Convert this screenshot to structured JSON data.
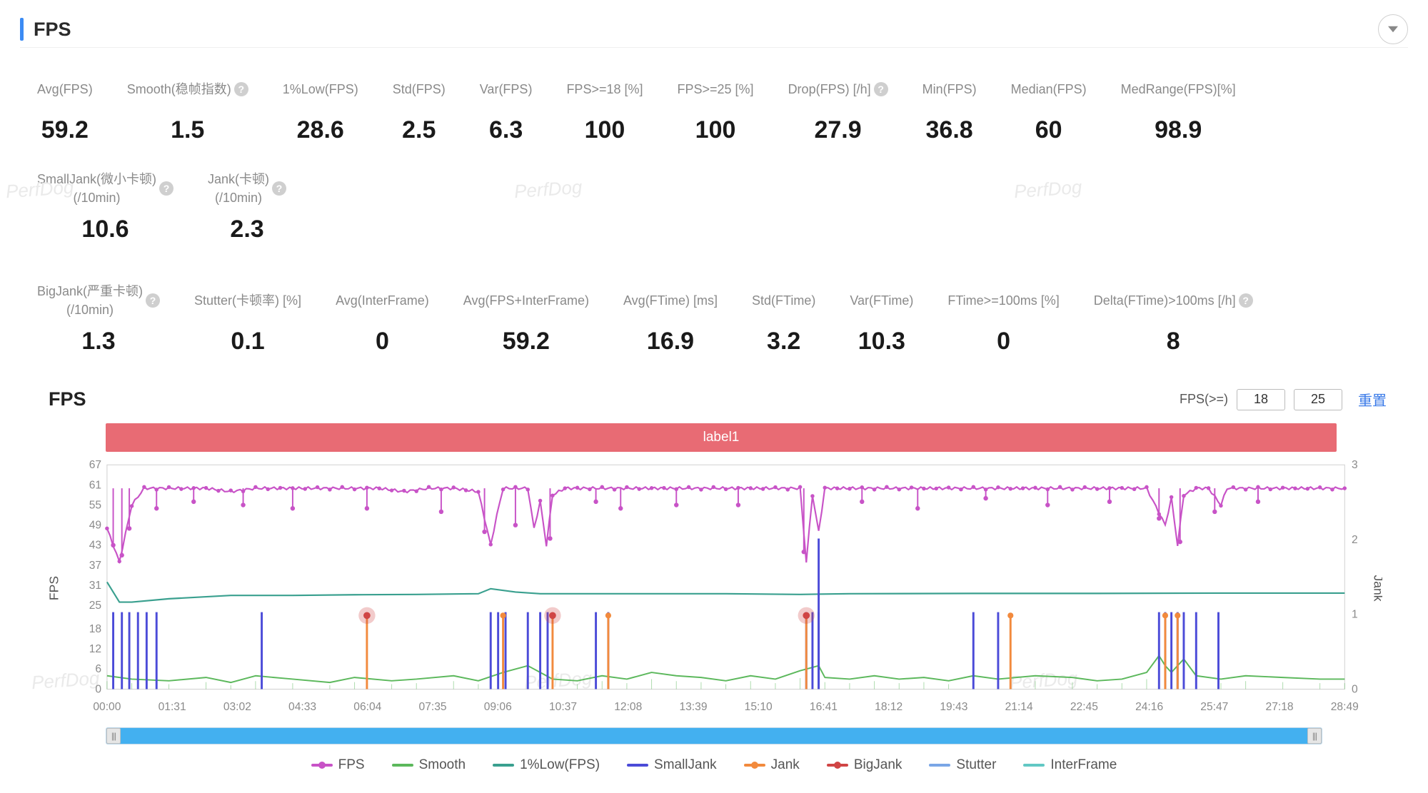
{
  "header": {
    "title": "FPS"
  },
  "watermark": "PerfDog",
  "metrics_row1": [
    {
      "label": "Avg(FPS)",
      "value": "59.2",
      "help": false
    },
    {
      "label": "Smooth(稳帧指数)",
      "value": "1.5",
      "help": true
    },
    {
      "label": "1%Low(FPS)",
      "value": "28.6",
      "help": false
    },
    {
      "label": "Std(FPS)",
      "value": "2.5",
      "help": false
    },
    {
      "label": "Var(FPS)",
      "value": "6.3",
      "help": false
    },
    {
      "label": "FPS>=18 [%]",
      "value": "100",
      "help": false
    },
    {
      "label": "FPS>=25 [%]",
      "value": "100",
      "help": false
    },
    {
      "label": "Drop(FPS) [/h]",
      "value": "27.9",
      "help": true
    },
    {
      "label": "Min(FPS)",
      "value": "36.8",
      "help": false
    },
    {
      "label": "Median(FPS)",
      "value": "60",
      "help": false
    },
    {
      "label": "MedRange(FPS)[%]",
      "value": "98.9",
      "help": false
    },
    {
      "label": "SmallJank(微小卡顿)\n(/10min)",
      "value": "10.6",
      "help": true
    },
    {
      "label": "Jank(卡顿)\n(/10min)",
      "value": "2.3",
      "help": true
    }
  ],
  "metrics_row2": [
    {
      "label": "BigJank(严重卡顿)\n(/10min)",
      "value": "1.3",
      "help": true
    },
    {
      "label": "Stutter(卡顿率) [%]",
      "value": "0.1",
      "help": false
    },
    {
      "label": "Avg(InterFrame)",
      "value": "0",
      "help": false
    },
    {
      "label": "Avg(FPS+InterFrame)",
      "value": "59.2",
      "help": false
    },
    {
      "label": "Avg(FTime) [ms]",
      "value": "16.9",
      "help": false
    },
    {
      "label": "Std(FTime)",
      "value": "3.2",
      "help": false
    },
    {
      "label": "Var(FTime)",
      "value": "10.3",
      "help": false
    },
    {
      "label": "FTime>=100ms [%]",
      "value": "0",
      "help": false
    },
    {
      "label": "Delta(FTime)>100ms [/h]",
      "value": "8",
      "help": true
    }
  ],
  "chart": {
    "title": "FPS",
    "filter_label": "FPS(>=)",
    "filter_a": "18",
    "filter_b": "25",
    "reset_label": "重置",
    "label_bar": "label1",
    "left_axis_label": "FPS",
    "right_axis_label": "Jank",
    "y_left_ticks": [
      0,
      6,
      12,
      18,
      25,
      31,
      37,
      43,
      49,
      55,
      61,
      67
    ],
    "y_left_range": [
      0,
      67
    ],
    "y_right_ticks": [
      0,
      1,
      2,
      3
    ],
    "y_right_range": [
      0,
      3
    ],
    "x_ticks": [
      "00:00",
      "01:31",
      "03:02",
      "04:33",
      "06:04",
      "07:35",
      "09:06",
      "10:37",
      "12:08",
      "13:39",
      "15:10",
      "16:41",
      "18:12",
      "19:43",
      "21:14",
      "22:45",
      "24:16",
      "25:47",
      "27:18",
      "28:49"
    ],
    "colors": {
      "fps": "#c853c7",
      "smooth": "#5cb85c",
      "low1": "#3aa08f",
      "smalljank": "#4b4bd8",
      "jank": "#f28a3d",
      "bigjank": "#d04545",
      "stutter": "#7aa6e6",
      "interframe": "#62c8c4",
      "axis": "#888888",
      "grid": "#efefef",
      "bg": "#ffffff"
    },
    "fps_baseline": 60,
    "fps_points": [
      [
        0,
        48
      ],
      [
        0.01,
        38
      ],
      [
        0.02,
        55
      ],
      [
        0.03,
        60
      ],
      [
        0.05,
        60
      ],
      [
        0.08,
        60
      ],
      [
        0.1,
        59
      ],
      [
        0.12,
        60
      ],
      [
        0.14,
        60
      ],
      [
        0.16,
        60
      ],
      [
        0.18,
        60
      ],
      [
        0.2,
        60
      ],
      [
        0.22,
        60
      ],
      [
        0.24,
        59
      ],
      [
        0.26,
        60
      ],
      [
        0.28,
        60
      ],
      [
        0.3,
        59
      ],
      [
        0.31,
        43
      ],
      [
        0.315,
        52
      ],
      [
        0.32,
        60
      ],
      [
        0.34,
        60
      ],
      [
        0.345,
        48
      ],
      [
        0.35,
        56
      ],
      [
        0.355,
        43
      ],
      [
        0.36,
        58
      ],
      [
        0.37,
        60
      ],
      [
        0.38,
        60
      ],
      [
        0.4,
        60
      ],
      [
        0.42,
        60
      ],
      [
        0.44,
        60
      ],
      [
        0.46,
        60
      ],
      [
        0.48,
        60
      ],
      [
        0.5,
        60
      ],
      [
        0.52,
        60
      ],
      [
        0.54,
        60
      ],
      [
        0.56,
        60
      ],
      [
        0.565,
        38
      ],
      [
        0.57,
        58
      ],
      [
        0.575,
        47
      ],
      [
        0.58,
        60
      ],
      [
        0.6,
        60
      ],
      [
        0.62,
        60
      ],
      [
        0.64,
        60
      ],
      [
        0.66,
        60
      ],
      [
        0.68,
        60
      ],
      [
        0.7,
        60
      ],
      [
        0.72,
        60
      ],
      [
        0.74,
        60
      ],
      [
        0.76,
        60
      ],
      [
        0.78,
        60
      ],
      [
        0.8,
        60
      ],
      [
        0.82,
        60
      ],
      [
        0.84,
        60
      ],
      [
        0.855,
        49
      ],
      [
        0.86,
        57
      ],
      [
        0.865,
        43
      ],
      [
        0.87,
        58
      ],
      [
        0.88,
        60
      ],
      [
        0.89,
        60
      ],
      [
        0.9,
        55
      ],
      [
        0.905,
        60
      ],
      [
        0.92,
        60
      ],
      [
        0.94,
        60
      ],
      [
        0.96,
        60
      ],
      [
        0.98,
        60
      ],
      [
        1.0,
        60
      ]
    ],
    "fps_dips": [
      [
        0.005,
        43
      ],
      [
        0.012,
        40
      ],
      [
        0.018,
        48
      ],
      [
        0.04,
        54
      ],
      [
        0.07,
        56
      ],
      [
        0.11,
        55
      ],
      [
        0.15,
        54
      ],
      [
        0.21,
        54
      ],
      [
        0.27,
        53
      ],
      [
        0.305,
        47
      ],
      [
        0.33,
        49
      ],
      [
        0.358,
        45
      ],
      [
        0.395,
        56
      ],
      [
        0.415,
        54
      ],
      [
        0.46,
        55
      ],
      [
        0.51,
        55
      ],
      [
        0.563,
        41
      ],
      [
        0.61,
        56
      ],
      [
        0.655,
        54
      ],
      [
        0.71,
        57
      ],
      [
        0.76,
        55
      ],
      [
        0.81,
        56
      ],
      [
        0.85,
        51
      ],
      [
        0.867,
        44
      ],
      [
        0.895,
        53
      ],
      [
        0.93,
        56
      ]
    ],
    "low1_points": [
      [
        0,
        32
      ],
      [
        0.01,
        26
      ],
      [
        0.02,
        26
      ],
      [
        0.05,
        27
      ],
      [
        0.1,
        28
      ],
      [
        0.15,
        28
      ],
      [
        0.2,
        28.2
      ],
      [
        0.25,
        28.3
      ],
      [
        0.3,
        28.5
      ],
      [
        0.31,
        30
      ],
      [
        0.33,
        29
      ],
      [
        0.35,
        28.5
      ],
      [
        0.4,
        28.5
      ],
      [
        0.5,
        28.5
      ],
      [
        0.56,
        28.3
      ],
      [
        0.6,
        28.5
      ],
      [
        0.7,
        28.6
      ],
      [
        0.8,
        28.6
      ],
      [
        0.9,
        28.7
      ],
      [
        1.0,
        28.7
      ]
    ],
    "smooth_points": [
      [
        0,
        4
      ],
      [
        0.02,
        3
      ],
      [
        0.05,
        2.5
      ],
      [
        0.08,
        3.5
      ],
      [
        0.1,
        2
      ],
      [
        0.12,
        4
      ],
      [
        0.15,
        3
      ],
      [
        0.18,
        2
      ],
      [
        0.2,
        3.5
      ],
      [
        0.23,
        2.5
      ],
      [
        0.25,
        3
      ],
      [
        0.28,
        4
      ],
      [
        0.3,
        2.5
      ],
      [
        0.32,
        5
      ],
      [
        0.34,
        7
      ],
      [
        0.36,
        3
      ],
      [
        0.38,
        2.5
      ],
      [
        0.4,
        4
      ],
      [
        0.42,
        3
      ],
      [
        0.44,
        5
      ],
      [
        0.46,
        4
      ],
      [
        0.48,
        3.5
      ],
      [
        0.5,
        2.5
      ],
      [
        0.52,
        4
      ],
      [
        0.54,
        3
      ],
      [
        0.56,
        5.5
      ],
      [
        0.575,
        7
      ],
      [
        0.58,
        3.5
      ],
      [
        0.6,
        3
      ],
      [
        0.62,
        4
      ],
      [
        0.64,
        3
      ],
      [
        0.66,
        3.5
      ],
      [
        0.68,
        2.5
      ],
      [
        0.7,
        4
      ],
      [
        0.72,
        3
      ],
      [
        0.75,
        4
      ],
      [
        0.78,
        3.5
      ],
      [
        0.8,
        2.5
      ],
      [
        0.82,
        3
      ],
      [
        0.84,
        5
      ],
      [
        0.85,
        10
      ],
      [
        0.855,
        7
      ],
      [
        0.86,
        5
      ],
      [
        0.87,
        9
      ],
      [
        0.88,
        4
      ],
      [
        0.9,
        3
      ],
      [
        0.92,
        4
      ],
      [
        0.95,
        3.5
      ],
      [
        0.98,
        3
      ],
      [
        1.0,
        3
      ]
    ],
    "smalljank_spikes": [
      0.005,
      0.012,
      0.018,
      0.025,
      0.032,
      0.04,
      0.125,
      0.31,
      0.316,
      0.322,
      0.34,
      0.35,
      0.356,
      0.395,
      0.405,
      0.565,
      0.57,
      0.575,
      0.7,
      0.72,
      0.85,
      0.855,
      0.86,
      0.865,
      0.87,
      0.88,
      0.898
    ],
    "jank_spikes": [
      0.21,
      0.32,
      0.36,
      0.405,
      0.565,
      0.73,
      0.855,
      0.865
    ],
    "bigjank_spikes": [
      0.21,
      0.36,
      0.565
    ],
    "smalljank_height": 23,
    "jank_height": 22
  },
  "legend": [
    {
      "name": "FPS",
      "color": "#c853c7",
      "dot": true
    },
    {
      "name": "Smooth",
      "color": "#5cb85c",
      "dot": false
    },
    {
      "name": "1%Low(FPS)",
      "color": "#3aa08f",
      "dot": false
    },
    {
      "name": "SmallJank",
      "color": "#4b4bd8",
      "dot": false
    },
    {
      "name": "Jank",
      "color": "#f28a3d",
      "dot": true
    },
    {
      "name": "BigJank",
      "color": "#d04545",
      "dot": true
    },
    {
      "name": "Stutter",
      "color": "#7aa6e6",
      "dot": false
    },
    {
      "name": "InterFrame",
      "color": "#62c8c4",
      "dot": false
    }
  ]
}
